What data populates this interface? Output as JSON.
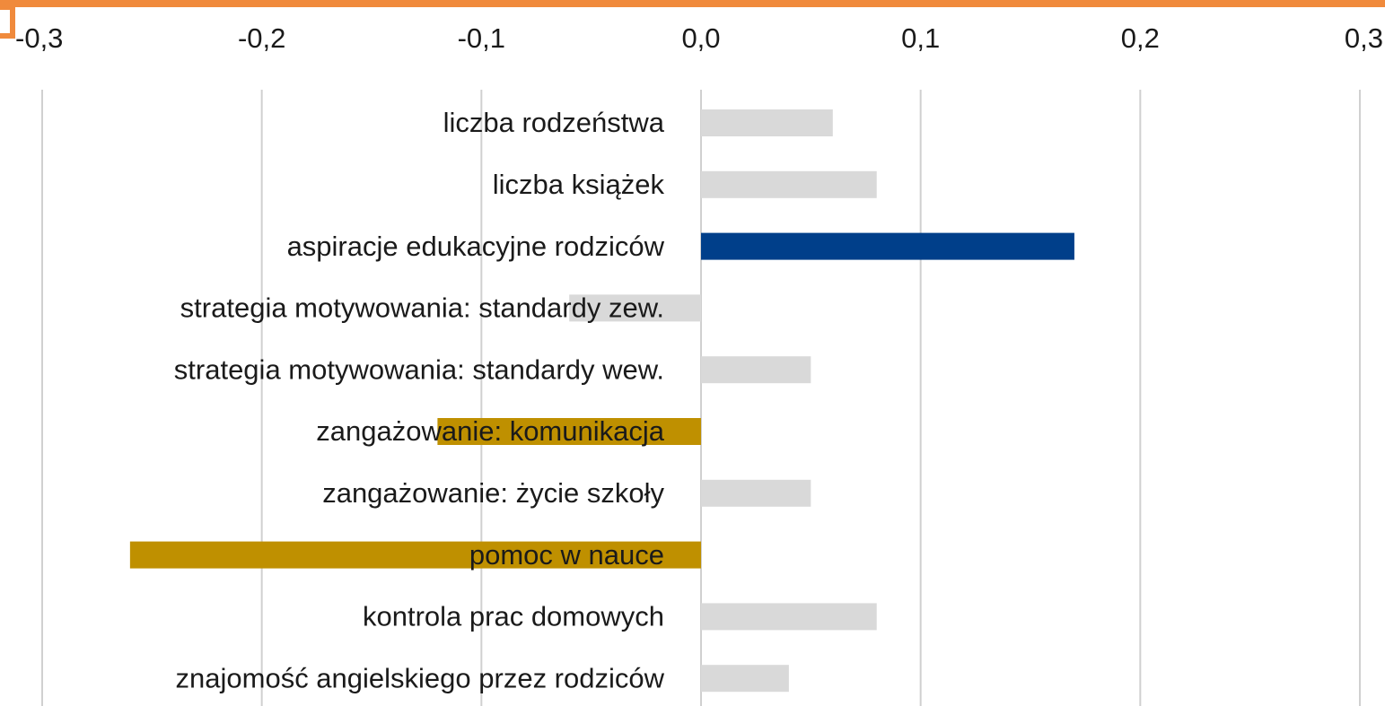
{
  "chart_data": {
    "type": "bar",
    "orientation": "horizontal",
    "categories": [
      "liczba rodzeństwa",
      "liczba książek",
      "aspiracje edukacyjne rodziców",
      "strategia motywowania: standardy zew.",
      "strategia motywowania: standardy wew.",
      "zangażowanie: komunikacja",
      "zangażowanie: życie szkoły",
      "pomoc w nauce",
      "kontrola prac domowych",
      "znajomość angielskiego przez rodziców"
    ],
    "values": [
      0.06,
      0.08,
      0.17,
      -0.06,
      0.05,
      -0.12,
      0.05,
      -0.26,
      0.08,
      0.04
    ],
    "colors": [
      "#d9d9d9",
      "#d9d9d9",
      "#003f8a",
      "#d9d9d9",
      "#d9d9d9",
      "#bf9000",
      "#d9d9d9",
      "#bf9000",
      "#d9d9d9",
      "#d9d9d9"
    ],
    "xlim": [
      -0.3,
      0.3
    ],
    "xticks": [
      {
        "value": -0.3,
        "label": "-0,3"
      },
      {
        "value": -0.2,
        "label": "-0,2"
      },
      {
        "value": -0.1,
        "label": "-0,1"
      },
      {
        "value": 0,
        "label": "0,0"
      },
      {
        "value": 0.1,
        "label": "0,1"
      },
      {
        "value": 0.2,
        "label": "0,2"
      },
      {
        "value": 0.3,
        "label": "0,3"
      }
    ],
    "grid": true
  }
}
